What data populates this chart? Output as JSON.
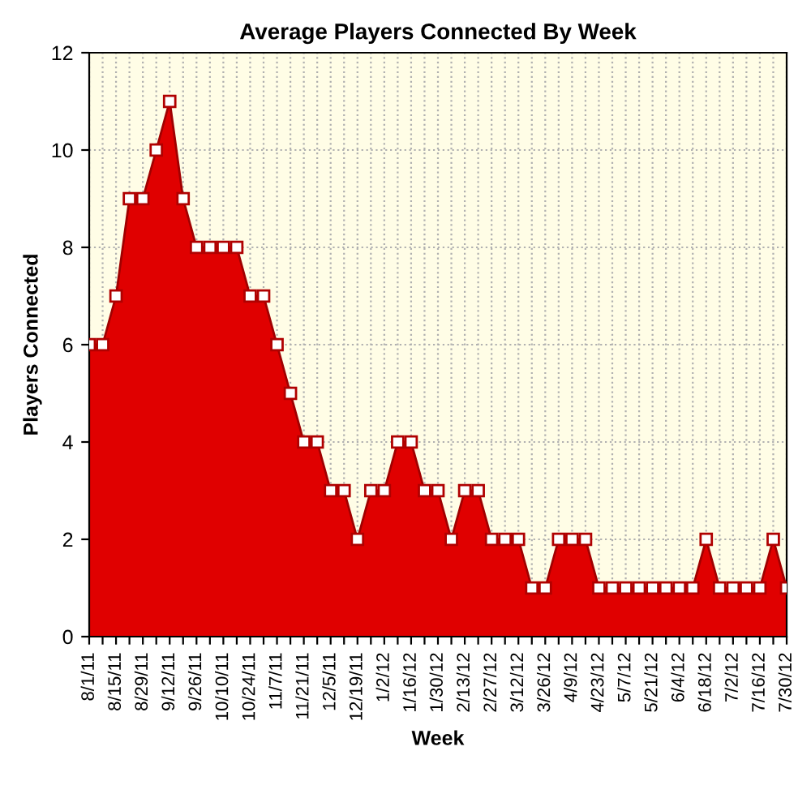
{
  "chart_data": {
    "type": "area",
    "title": "Average Players Connected By Week",
    "xlabel": "Week",
    "ylabel": "Players Connected",
    "categories": [
      "8/1/11",
      null,
      "8/15/11",
      null,
      "8/29/11",
      null,
      "9/12/11",
      null,
      "9/26/11",
      null,
      "10/10/11",
      null,
      "10/24/11",
      null,
      "11/7/11",
      null,
      "11/21/11",
      null,
      "12/5/11",
      null,
      "12/19/11",
      null,
      "1/2/12",
      null,
      "1/16/12",
      null,
      "1/30/12",
      null,
      "2/13/12",
      null,
      "2/27/12",
      null,
      "3/12/12",
      null,
      "3/26/12",
      null,
      "4/9/12",
      null,
      "4/23/12",
      null,
      "5/7/12",
      null,
      "5/21/12",
      null,
      "6/4/12",
      null,
      "6/18/12",
      null,
      "7/2/12",
      null,
      "7/16/12",
      null,
      "7/30/12"
    ],
    "series": [
      {
        "color": "#e00000",
        "values": [
          6,
          6,
          7,
          9,
          9,
          10,
          11,
          9,
          8,
          8,
          8,
          8,
          7,
          7,
          6,
          5,
          4,
          4,
          3,
          3,
          2,
          3,
          3,
          4,
          4,
          3,
          3,
          2,
          3,
          3,
          2,
          2,
          2,
          1,
          1,
          2,
          2,
          2,
          1,
          1,
          1,
          1,
          1,
          1,
          1,
          1,
          2,
          1,
          1,
          1,
          1,
          2,
          1
        ]
      }
    ],
    "ylim": [
      0,
      12
    ],
    "yticks": [
      0,
      2,
      4,
      6,
      8,
      10,
      12
    ],
    "grid": true,
    "marker": "square"
  }
}
